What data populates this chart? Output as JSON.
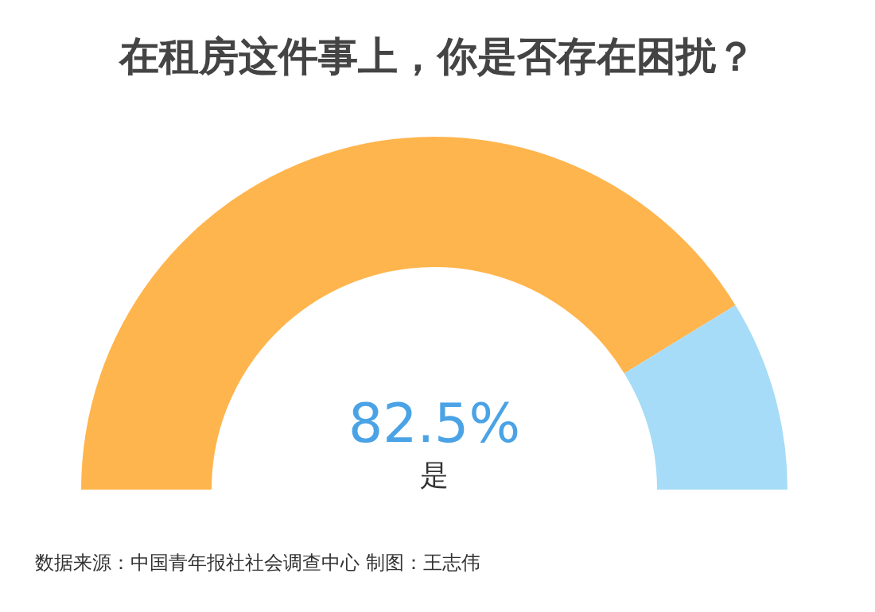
{
  "chart_data": {
    "type": "donut",
    "title": "在租房这件事上，你是否存在困扰？",
    "categories": [
      "是",
      null
    ],
    "values": [
      82.5,
      17.5
    ],
    "colors": [
      "#ffb54d",
      "#a6dcf7"
    ],
    "value_labels": [
      "82.5%",
      null
    ],
    "annotations": [
      "数据来源：中国青年报社社会调查中心 制图：王志伟"
    ]
  }
}
